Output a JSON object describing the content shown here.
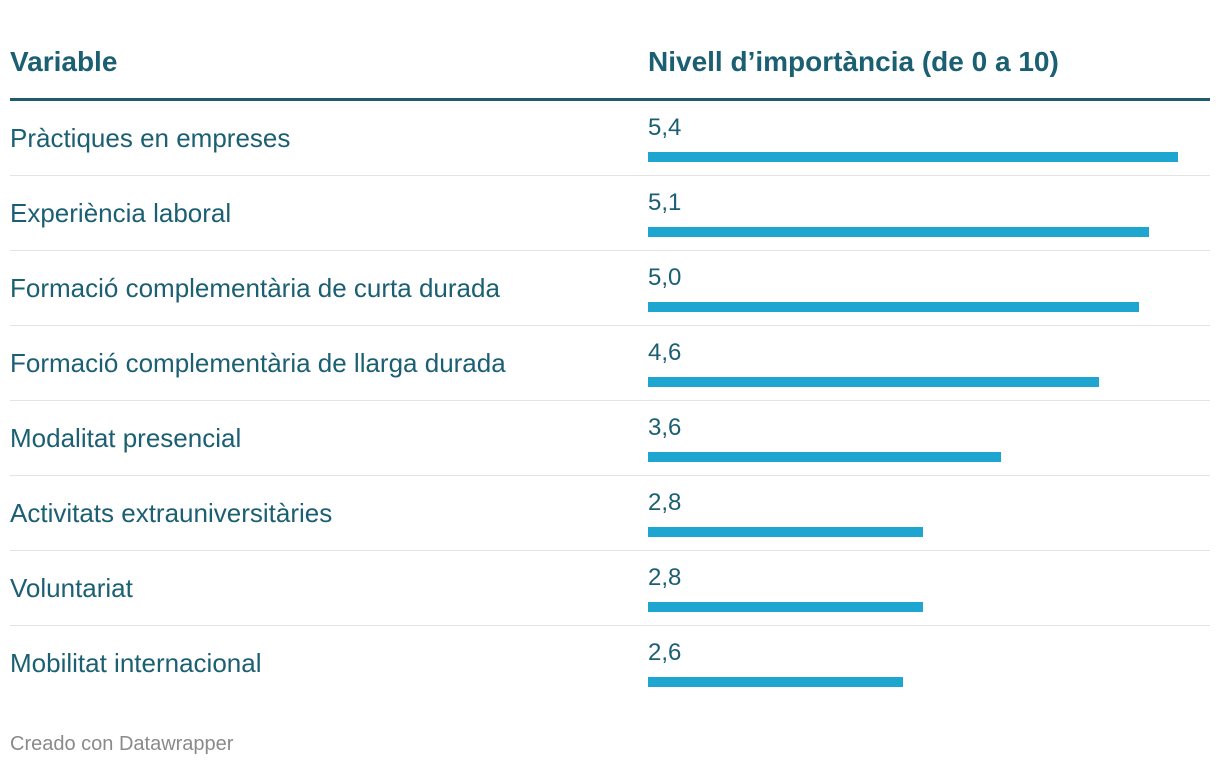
{
  "chart_data": {
    "type": "bar",
    "orientation": "horizontal",
    "headers": {
      "variable": "Variable",
      "importance": "Nivell d’importància (de 0 a 10)"
    },
    "xlim": [
      0,
      5.4
    ],
    "rows": [
      {
        "label": "Pràctiques en empreses",
        "value": 5.4,
        "value_label": "5,4"
      },
      {
        "label": "Experiència laboral",
        "value": 5.1,
        "value_label": "5,1"
      },
      {
        "label": "Formació complementària de curta durada",
        "value": 5.0,
        "value_label": "5,0"
      },
      {
        "label": "Formació complementària de llarga durada",
        "value": 4.6,
        "value_label": "4,6"
      },
      {
        "label": "Modalitat presencial",
        "value": 3.6,
        "value_label": "3,6"
      },
      {
        "label": "Activitats extrauniversitàries",
        "value": 2.8,
        "value_label": "2,8"
      },
      {
        "label": "Voluntariat",
        "value": 2.8,
        "value_label": "2,8"
      },
      {
        "label": "Mobilitat internacional",
        "value": 2.6,
        "value_label": "2,6"
      }
    ],
    "colors": {
      "bar": "#1ea6d1",
      "text": "#1b5f73",
      "header_rule": "#1f5a6e"
    }
  },
  "footer": {
    "credit": "Creado con Datawrapper"
  }
}
